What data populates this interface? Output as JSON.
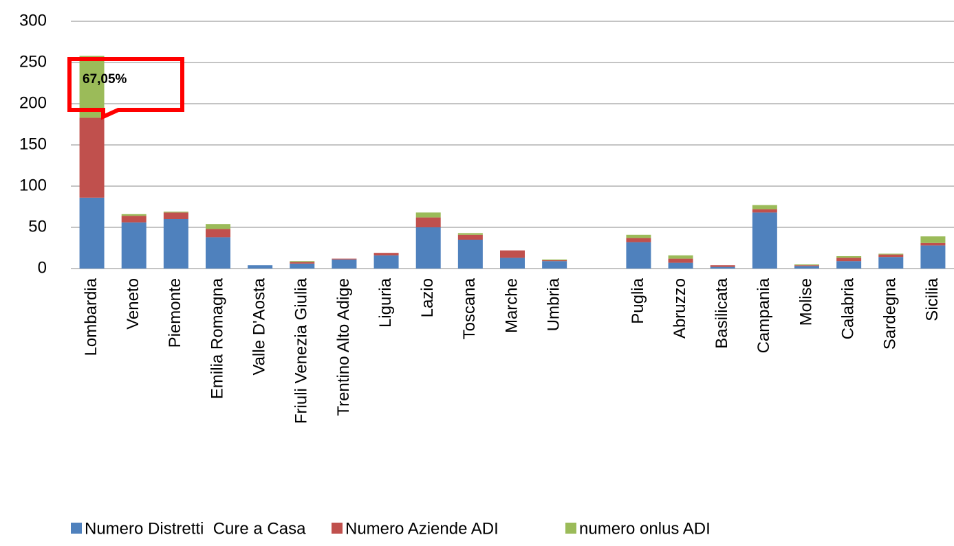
{
  "chart_data": {
    "type": "stacked_bar",
    "categories": [
      "Lombardia",
      "Veneto",
      "Piemonte",
      "Emilia Romagna",
      "Valle D'Aosta",
      "Friuli Venezia Giulia",
      "Trentino Alto Adige",
      "Liguria",
      "Lazio",
      "Toscana",
      "Marche",
      "Umbria",
      null,
      "Puglia",
      "Abruzzo",
      "Basilicata",
      "Campania",
      "Molise",
      "Calabria",
      "Sardegna",
      "Sicilia"
    ],
    "series": [
      {
        "name": "Numero Distretti  Cure a Casa",
        "color": "#4f81bd",
        "values": [
          86,
          56,
          60,
          38,
          4,
          6,
          11,
          16,
          50,
          35,
          13,
          9,
          null,
          32,
          7,
          2,
          68,
          3,
          9,
          14,
          28
        ]
      },
      {
        "name": "Numero Aziende ADI",
        "color": "#c0504d",
        "values": [
          97,
          8,
          8,
          10,
          0,
          2,
          1,
          3,
          12,
          6,
          9,
          1,
          null,
          5,
          5,
          2,
          4,
          1,
          4,
          3,
          3
        ]
      },
      {
        "name": "numero onlus ADI",
        "color": "#9bbb59",
        "values": [
          75,
          2,
          1,
          6,
          0,
          1,
          0,
          0,
          6,
          2,
          0,
          1,
          null,
          4,
          4,
          0,
          5,
          1,
          2,
          1,
          8
        ]
      }
    ],
    "ylim": [
      0,
      300
    ],
    "yticks": [
      0,
      50,
      100,
      150,
      200,
      250,
      300
    ],
    "grid": true,
    "annotation": "67,05%"
  }
}
